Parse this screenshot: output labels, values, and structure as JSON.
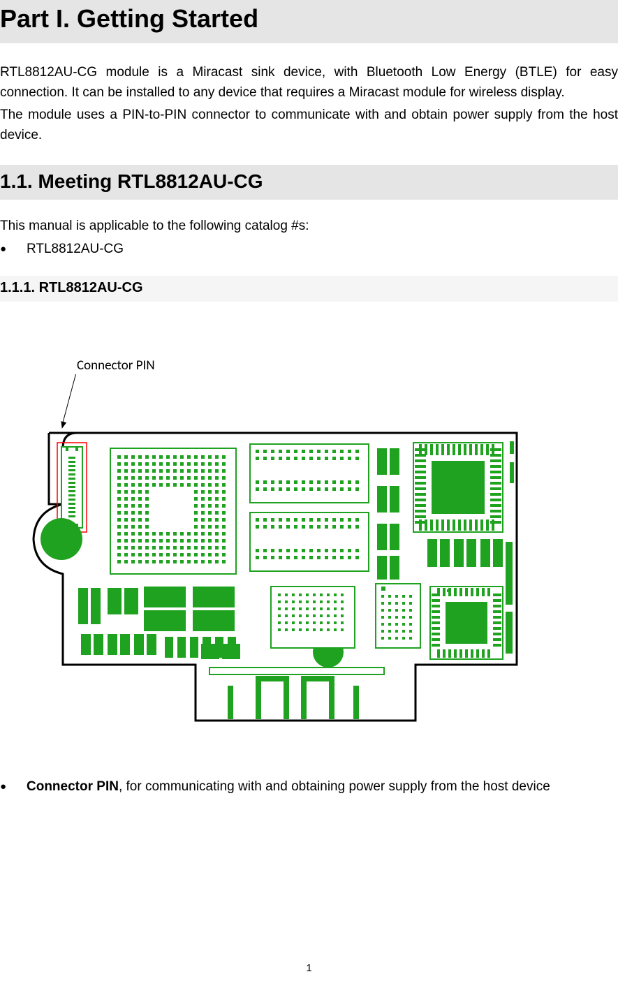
{
  "headings": {
    "part": "Part I.   Getting Started",
    "s1_1": "1.1.   Meeting RTL8812AU-CG",
    "s1_1_1": "1.1.1.    RTL8812AU-CG"
  },
  "intro": {
    "p1": "RTL8812AU-CG module is a Miracast sink device, with Bluetooth Low Energy (BTLE) for easy connection. It can be installed to any device that requires a Miracast module for wireless display.",
    "p2": "The module uses a PIN-to-PIN connector to communicate with and obtain power supply from the host device."
  },
  "catalog": {
    "lead": "This manual is applicable to the following catalog #s:",
    "items": [
      "RTL8812AU-CG"
    ]
  },
  "pcb": {
    "label": "Connector PIN",
    "colors": {
      "copper": "#1fa21f",
      "outline": "#000000",
      "highlight": "#ff0000",
      "bg": "#ffffff"
    }
  },
  "connector_desc": {
    "bold": "Connector PIN",
    "rest": ", for communicating with and obtaining power supply from the host device"
  },
  "page_number": "1"
}
